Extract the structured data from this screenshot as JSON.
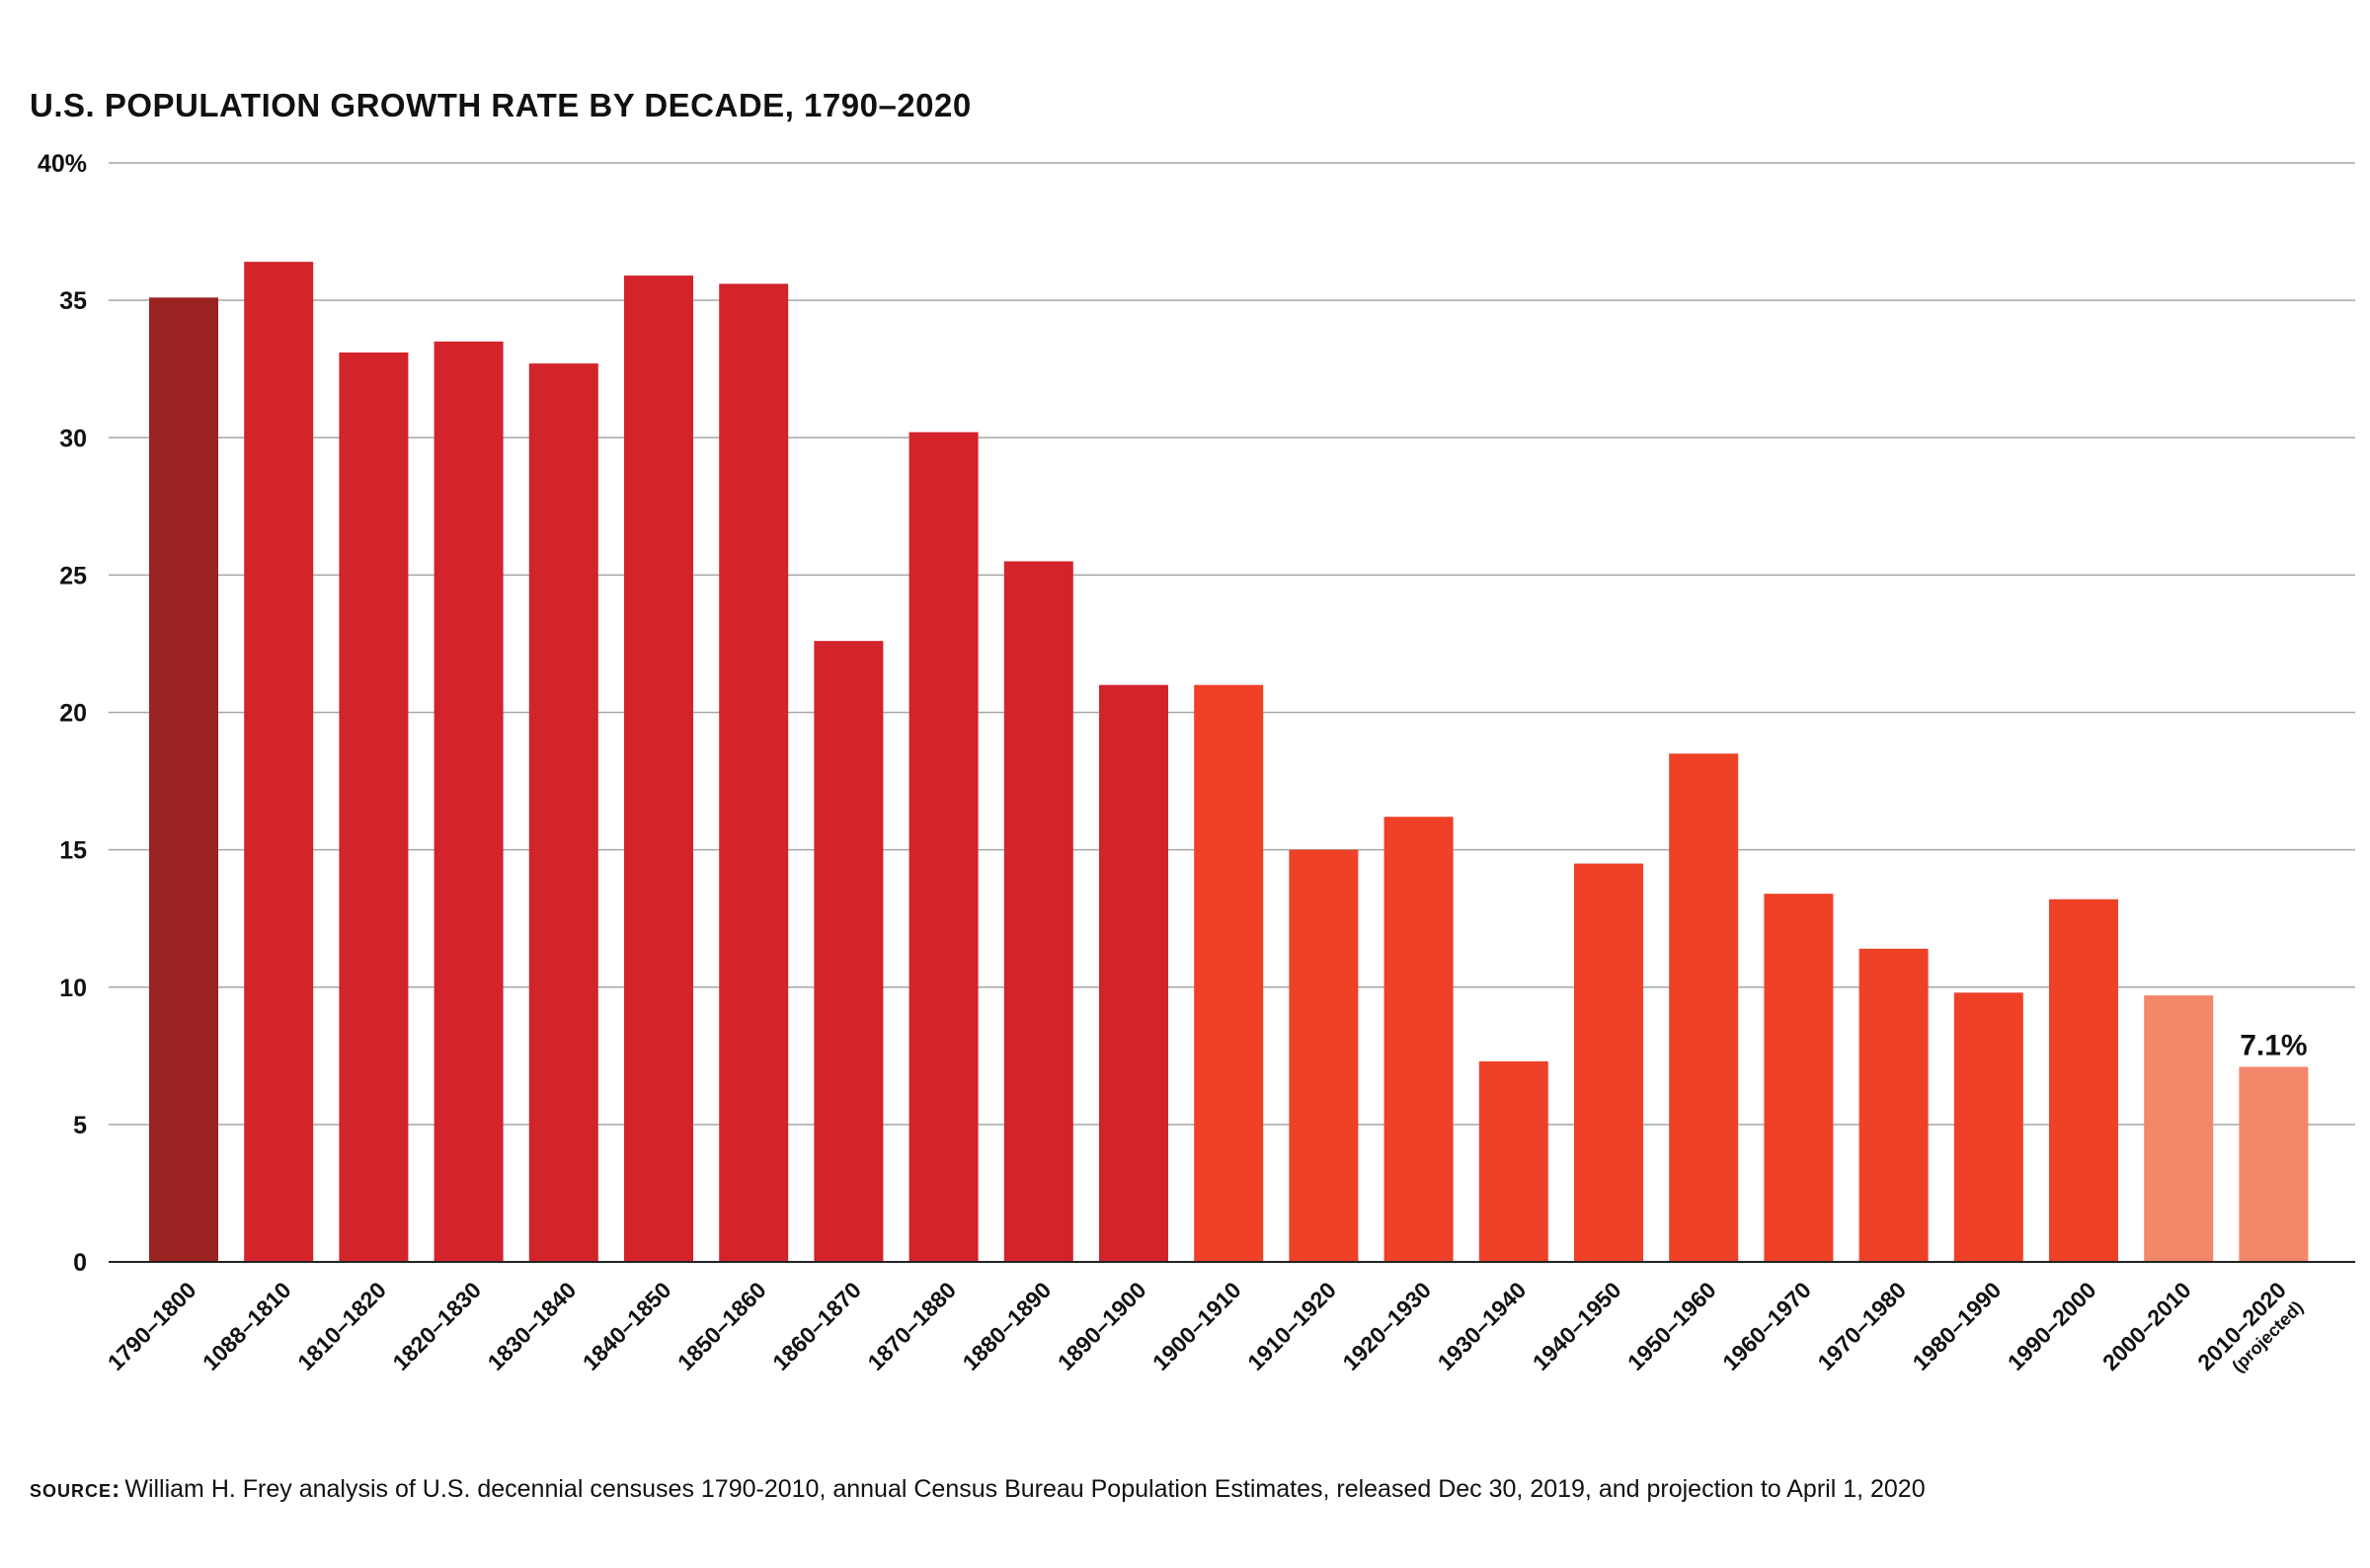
{
  "chart_data": {
    "type": "bar",
    "title": "U.S. POPULATION GROWTH RATE BY DECADE, 1790–2020",
    "xlabel": "",
    "ylabel": "",
    "ylim": [
      0,
      40
    ],
    "yticks": [
      {
        "value": 0,
        "label": "0"
      },
      {
        "value": 5,
        "label": "5"
      },
      {
        "value": 10,
        "label": "10"
      },
      {
        "value": 15,
        "label": "15"
      },
      {
        "value": 20,
        "label": "20"
      },
      {
        "value": 25,
        "label": "25"
      },
      {
        "value": 30,
        "label": "30"
      },
      {
        "value": 35,
        "label": "35"
      },
      {
        "value": 40,
        "label": "40%"
      }
    ],
    "grid": true,
    "categories": [
      "1790–1800",
      "1088–1810",
      "1810–1820",
      "1820–1830",
      "1830–1840",
      "1840–1850",
      "1850–1860",
      "1860–1870",
      "1870–1880",
      "1880–1890",
      "1890–1900",
      "1900–1910",
      "1910–1920",
      "1920–1930",
      "1930–1940",
      "1940–1950",
      "1950–1960",
      "1960–1970",
      "1970–1980",
      "1980–1990",
      "1990–2000",
      "2000–2010",
      "2010–2020"
    ],
    "category_sublabels": {
      "22": "(projected)"
    },
    "values": [
      35.1,
      36.4,
      33.1,
      33.5,
      32.7,
      35.9,
      35.6,
      22.6,
      30.2,
      25.5,
      21.0,
      21.0,
      15.0,
      16.2,
      7.3,
      14.5,
      18.5,
      13.4,
      11.4,
      9.8,
      13.2,
      9.7,
      7.1
    ],
    "bar_colors": [
      "#9b2422",
      "#d3232b",
      "#d3232b",
      "#d3232b",
      "#d3232b",
      "#d3232b",
      "#d3232b",
      "#d3232b",
      "#d3232b",
      "#d3232b",
      "#d3232b",
      "#ee4127",
      "#ee4127",
      "#ee4127",
      "#ee4127",
      "#ee4127",
      "#ee4127",
      "#ee4127",
      "#ee4127",
      "#ee4127",
      "#ee4127",
      "#f4866a",
      "#f4866a"
    ],
    "annotations": [
      {
        "category_index": 22,
        "text": "7.1%"
      }
    ],
    "gridline_color": "#a6a6a6",
    "axis_color": "#222222"
  },
  "source": {
    "label": "SOURCE:",
    "text": "William H. Frey analysis of U.S. decennial censuses 1790-2010, annual Census Bureau Population Estimates, released Dec 30, 2019, and projection to April 1, 2020"
  }
}
